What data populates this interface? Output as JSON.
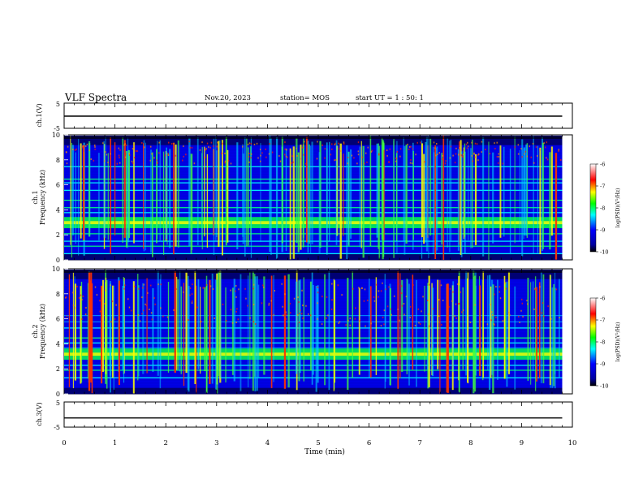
{
  "header": {
    "title": "VLF Spectra",
    "date": "Nov.20, 2023",
    "station": "station= MOS",
    "start": "start  UT =   1 : 50: 1"
  },
  "chart_data": [
    {
      "type": "line",
      "panel": "ch1-waveform",
      "ylabel": "ch.1(V)",
      "ylim": [
        -5,
        5
      ],
      "yticks": [
        "5",
        "-5"
      ],
      "xlim": [
        0,
        10
      ],
      "series": [
        {
          "x": [
            0,
            9.8
          ],
          "y": [
            0,
            0
          ]
        }
      ]
    },
    {
      "type": "heatmap",
      "panel": "ch1-spectrogram",
      "ylabel": "ch.1 Frequency (kHz)",
      "ylim": [
        0,
        10
      ],
      "yticks": [
        "0",
        "2",
        "4",
        "6",
        "8",
        "10"
      ],
      "xlim": [
        0,
        10
      ],
      "data_end_min": 9.8,
      "band_khz": 3.0,
      "colorbar": {
        "label": "log(PSD)(V²/Hz)",
        "ticks": [
          "-6",
          "-7",
          "-8",
          "-9",
          "-10"
        ],
        "range": [
          -10,
          -6
        ]
      }
    },
    {
      "type": "heatmap",
      "panel": "ch2-spectrogram",
      "ylabel": "ch.2 Frequency (kHz)",
      "ylim": [
        0,
        10
      ],
      "yticks": [
        "0",
        "2",
        "4",
        "6",
        "8",
        "10"
      ],
      "xlim": [
        0,
        10
      ],
      "data_end_min": 9.8,
      "band_khz": 3.2,
      "colorbar": {
        "label": "log(PSD)(V²/Hz)",
        "ticks": [
          "-6",
          "-7",
          "-8",
          "-9",
          "-10"
        ],
        "range": [
          -10,
          -6
        ]
      }
    },
    {
      "type": "line",
      "panel": "ch3-waveform",
      "ylabel": "ch.3(V)",
      "ylim": [
        -5,
        5
      ],
      "yticks": [
        "5",
        "-5"
      ],
      "xlim": [
        0,
        10
      ],
      "series": [
        {
          "x": [
            0,
            9.8
          ],
          "y": [
            -1.2,
            -1.2
          ]
        }
      ]
    }
  ],
  "xaxis": {
    "label": "Time  (min)",
    "ticks": [
      "0",
      "1",
      "2",
      "3",
      "4",
      "5",
      "6",
      "7",
      "8",
      "9",
      "10"
    ]
  },
  "colormap": [
    "#000000",
    "#00007f",
    "#0000ff",
    "#0080ff",
    "#00ffff",
    "#00ff80",
    "#80ff00",
    "#ffff00",
    "#ff8000",
    "#ff0000",
    "#ffffff"
  ]
}
